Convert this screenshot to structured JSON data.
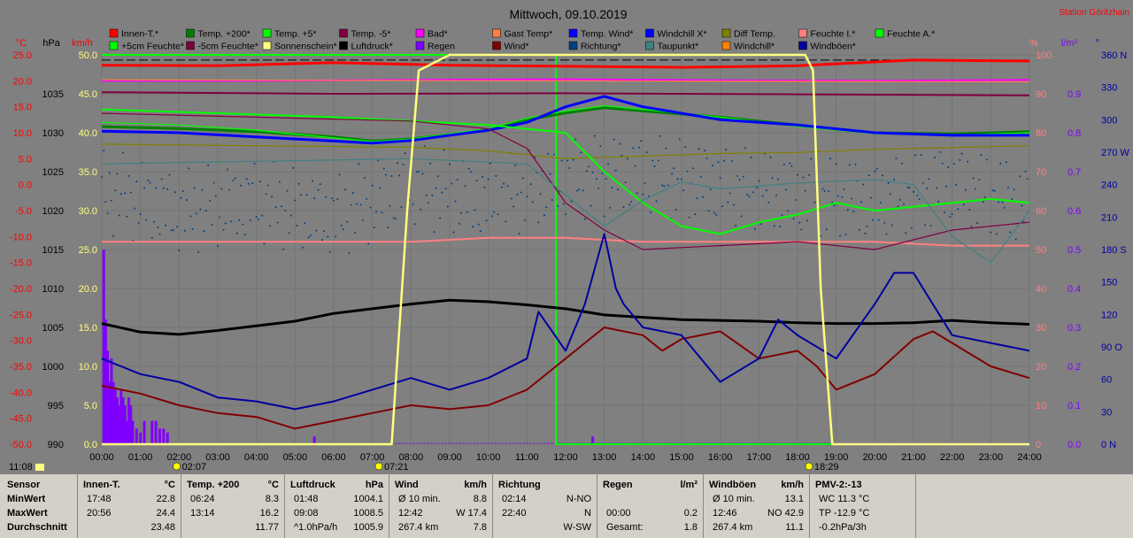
{
  "chart_data": {
    "type": "line",
    "title": "Mittwoch, 09.10.2019",
    "station": "Station Göritzhain",
    "x_ticks": [
      "00:00",
      "01:00",
      "02:00",
      "03:00",
      "04:00",
      "05:00",
      "06:00",
      "07:00",
      "08:00",
      "09:00",
      "10:00",
      "11:00",
      "12:00",
      "13:00",
      "14:00",
      "15:00",
      "16:00",
      "17:00",
      "18:00",
      "19:00",
      "20:00",
      "21:00",
      "22:00",
      "23:00",
      "24:00"
    ],
    "axes": {
      "temp_c": {
        "label": "°C",
        "ticks": [
          "25.0",
          "20.0",
          "15.0",
          "10.0",
          "5.0",
          "0.0",
          "-5.0",
          "-10.0",
          "-15.0",
          "-20.0",
          "-25.0",
          "-30.0",
          "-35.0",
          "-40.0",
          "-45.0",
          "-50.0"
        ],
        "range": [
          -50,
          25
        ],
        "color": "#ff0000"
      },
      "pressure_hpa": {
        "label": "hPa",
        "ticks": [
          "1035",
          "1030",
          "1025",
          "1020",
          "1015",
          "1010",
          "1005",
          "1000",
          "995",
          "990"
        ],
        "range": [
          990,
          1040
        ]
      },
      "wind_kmh": {
        "label": "km/h",
        "ticks": [
          "50.0",
          "45.0",
          "40.0",
          "35.0",
          "30.0",
          "25.0",
          "20.0",
          "15.0",
          "10.0",
          "5.0",
          "0.0"
        ],
        "range": [
          0,
          50
        ],
        "color": "#ffff80"
      },
      "humidity_pct": {
        "label": "%",
        "ticks": [
          "100",
          "90",
          "80",
          "70",
          "60",
          "50",
          "40",
          "30",
          "20",
          "10",
          "0"
        ],
        "range": [
          0,
          100
        ],
        "color": "#ff8080"
      },
      "rain_lm2": {
        "label": "l/m²",
        "ticks": [
          "0.9",
          "0.8",
          "0.7",
          "0.6",
          "0.5",
          "0.4",
          "0.3",
          "0.2",
          "0.1",
          "0.0"
        ],
        "range": [
          0,
          1
        ],
        "color": "#8000ff"
      },
      "direction": {
        "label": "°",
        "ticks": [
          "360 N",
          "330",
          "300",
          "270 W",
          "240",
          "210",
          "180 S",
          "150",
          "120",
          "90 O",
          "60",
          "30",
          "0 N"
        ],
        "range": [
          0,
          360
        ],
        "color": "#0000a0"
      }
    },
    "legend": [
      {
        "name": "Innen-T.*",
        "color": "#ff0000"
      },
      {
        "name": "Temp. +200*",
        "color": "#008000"
      },
      {
        "name": "Temp. +5*",
        "color": "#00ff00"
      },
      {
        "name": "Temp. -5*",
        "color": "#800040"
      },
      {
        "name": "Bad*",
        "color": "#ff00ff"
      },
      {
        "name": "Gast Temp*",
        "color": "#ff8040"
      },
      {
        "name": "Temp. Wind*",
        "color": "#0000ff"
      },
      {
        "name": "Windchill X*",
        "color": "#0000ff"
      },
      {
        "name": "Diff Temp.",
        "color": "#808000"
      },
      {
        "name": "Feuchte I.*",
        "color": "#ff8080"
      },
      {
        "name": "Feuchte A.*",
        "color": "#00ff00"
      },
      {
        "name": "+5cm Feuchte*",
        "color": "#00ff00"
      },
      {
        "name": "-5cm Feuchte*",
        "color": "#800040"
      },
      {
        "name": "Sonnenschein*",
        "color": "#ffff80"
      },
      {
        "name": "Luftdruck*",
        "color": "#000000"
      },
      {
        "name": "Regen",
        "color": "#8000ff"
      },
      {
        "name": "Wind*",
        "color": "#800000"
      },
      {
        "name": "Richtung*",
        "color": "#004080"
      },
      {
        "name": "Taupunkt*",
        "color": "#408080"
      },
      {
        "name": "Windchill*",
        "color": "#ff8000"
      },
      {
        "name": "Windböen*",
        "color": "#0000a0"
      }
    ],
    "series": [
      {
        "legend": "Innen-T.*",
        "color": "#ff0000",
        "axis": "temp_c",
        "x": [
          0,
          3,
          6,
          9,
          12,
          15,
          18,
          21,
          24
        ],
        "y": [
          23.0,
          22.9,
          23.5,
          23.0,
          22.8,
          22.6,
          22.9,
          24.0,
          23.8
        ]
      },
      {
        "legend": "Bad*",
        "color": "#ff00ff",
        "axis": "temp_c",
        "x": [
          0,
          4,
          8,
          12,
          16,
          20,
          24
        ],
        "y": [
          20.0,
          20.0,
          20.2,
          20.3,
          20.1,
          20.0,
          20.2
        ]
      },
      {
        "legend": "Gast Temp*",
        "color": "#ff8040",
        "axis": "temp_c",
        "x": [
          0,
          24
        ],
        "y": [
          20.2,
          19.8
        ]
      },
      {
        "legend": "Temp. -5*",
        "color": "#800040",
        "axis": "temp_c",
        "x": [
          0,
          6,
          12,
          18,
          24
        ],
        "y": [
          17.8,
          17.5,
          17.6,
          17.4,
          17.2
        ]
      },
      {
        "legend": "Temp. +200*",
        "color": "#008000",
        "axis": "temp_c",
        "x": [
          0,
          2,
          4,
          6,
          7,
          8,
          10,
          11,
          12,
          13,
          14,
          16,
          18,
          20,
          22,
          24
        ],
        "y": [
          11.2,
          10.8,
          10.2,
          9.2,
          8.4,
          8.8,
          10.5,
          12.5,
          13.8,
          14.8,
          14.2,
          13.0,
          11.5,
          10.0,
          9.8,
          10.2
        ]
      },
      {
        "legend": "Temp. +5*",
        "color": "#00ff00",
        "axis": "temp_c",
        "x": [
          0,
          2,
          4,
          6,
          7,
          8,
          10,
          11,
          12,
          13,
          14,
          16,
          18,
          20,
          22,
          24
        ],
        "y": [
          12.0,
          11.5,
          10.5,
          9.0,
          8.3,
          8.8,
          10.8,
          12.8,
          14.2,
          15.2,
          14.5,
          13.0,
          11.2,
          9.8,
          9.5,
          10.0
        ]
      },
      {
        "legend": "Windchill X*",
        "color": "#0000ff",
        "axis": "temp_c",
        "x": [
          0,
          2,
          4,
          6,
          7,
          8,
          9,
          10,
          11,
          12,
          12.5,
          13,
          14,
          16,
          18,
          20,
          22,
          24
        ],
        "y": [
          10.3,
          10.0,
          9.2,
          8.4,
          8.0,
          8.5,
          9.5,
          10.5,
          12.0,
          15.0,
          16.0,
          17.0,
          15.0,
          12.5,
          11.5,
          10.0,
          9.5,
          9.5
        ]
      },
      {
        "legend": "Diff Temp.",
        "color": "#808000",
        "axis": "temp_c",
        "x": [
          0,
          4,
          8,
          10,
          12,
          14,
          16,
          18,
          20,
          24
        ],
        "y": [
          7.8,
          7.5,
          7.2,
          6.5,
          5.0,
          5.5,
          6.0,
          6.2,
          6.8,
          7.5
        ]
      },
      {
        "legend": "Feuchte I.*",
        "color": "#ff8080",
        "axis": "humidity_pct",
        "x": [
          0,
          2,
          4,
          6,
          8,
          10,
          12,
          14,
          16,
          18,
          20,
          22,
          24
        ],
        "y": [
          52,
          52,
          52,
          52,
          52,
          53,
          53,
          52,
          52,
          52,
          52,
          51,
          51
        ]
      },
      {
        "legend": "Feuchte A.*",
        "color": "#00ff00",
        "axis": "humidity_pct",
        "x": [
          0,
          3,
          6,
          8,
          10,
          11,
          12,
          13,
          14,
          15,
          16,
          17,
          18,
          19,
          20,
          22,
          23,
          24
        ],
        "y": [
          86,
          85,
          84,
          83,
          82,
          81,
          80,
          70,
          62,
          56,
          54,
          57,
          59,
          62,
          60,
          62,
          63,
          62
        ]
      },
      {
        "legend": "-5cm Feuchte*",
        "color": "#800040",
        "axis": "humidity_pct",
        "x": [
          0,
          4,
          8,
          10,
          11,
          12,
          13,
          14,
          16,
          18,
          20,
          22,
          24
        ],
        "y": [
          85,
          84,
          83,
          81,
          76,
          62,
          55,
          50,
          51,
          52,
          50,
          55,
          57
        ]
      },
      {
        "legend": "Taupunkt*",
        "color": "#408080",
        "axis": "temp_c",
        "x": [
          0,
          4,
          8,
          11,
          12,
          13,
          14,
          15,
          16,
          18,
          20,
          21,
          22,
          23,
          24
        ],
        "y": [
          4,
          4.5,
          5,
          4,
          -2,
          -8,
          -3,
          0.5,
          -0.8,
          0.3,
          1.0,
          0,
          -10,
          -15,
          -5
        ]
      },
      {
        "legend": "Luftdruck*",
        "color": "#000000",
        "axis": "pressure_hpa",
        "x": [
          0,
          1,
          2,
          3,
          4,
          5,
          6,
          7,
          8,
          9,
          10,
          11,
          12,
          13,
          14,
          15,
          16,
          17,
          18,
          19,
          20,
          21,
          22,
          23,
          24
        ],
        "y": [
          1005.5,
          1004.4,
          1004.1,
          1004.6,
          1005.2,
          1005.8,
          1006.8,
          1007.4,
          1008.0,
          1008.5,
          1008.3,
          1007.9,
          1007.4,
          1006.6,
          1006.3,
          1006.0,
          1005.9,
          1005.8,
          1005.6,
          1005.5,
          1005.5,
          1005.6,
          1005.9,
          1005.6,
          1005.4
        ]
      },
      {
        "legend": "Wind*",
        "color": "#800000",
        "axis": "wind_kmh",
        "x": [
          0,
          1,
          2,
          3,
          4,
          5,
          6,
          7,
          8,
          9,
          10,
          11,
          12,
          12.5,
          13,
          14,
          14.5,
          15,
          16,
          17,
          18,
          18.5,
          19,
          20,
          21,
          21.5,
          22,
          23,
          24
        ],
        "y": [
          7.5,
          6.5,
          5.0,
          4.0,
          3.5,
          2.0,
          3.0,
          4.0,
          5.0,
          4.5,
          5.0,
          7.0,
          11.0,
          13.0,
          15.0,
          14.0,
          12.0,
          13.5,
          14.5,
          11.0,
          12.0,
          10.0,
          7.0,
          9.0,
          13.5,
          14.5,
          13.0,
          10.0,
          8.5
        ]
      },
      {
        "legend": "Windböen*",
        "color": "#0000a0",
        "axis": "wind_kmh",
        "x": [
          0,
          1,
          2,
          3,
          4,
          5,
          6,
          7,
          8,
          9,
          10,
          11,
          11.3,
          12,
          12.5,
          13,
          13.3,
          13.5,
          14,
          15,
          16,
          17,
          17.5,
          18,
          19,
          20,
          20.5,
          21,
          21.5,
          22,
          23,
          24
        ],
        "y": [
          11.0,
          9.0,
          8.0,
          6.0,
          5.5,
          4.5,
          5.5,
          7.0,
          8.5,
          7.0,
          8.5,
          11.0,
          17.0,
          12.0,
          18.0,
          27.0,
          20.0,
          18.0,
          15.0,
          14.0,
          8.0,
          11.0,
          16.0,
          14.0,
          11.0,
          18.0,
          22.0,
          22.0,
          18.0,
          14.0,
          13.0,
          12.0
        ]
      },
      {
        "legend": "Sonnenschein*",
        "color": "#ffff80",
        "axis": "wind_kmh",
        "x": [
          0,
          7.5,
          7.9,
          8.2,
          9,
          18.2,
          18.4,
          18.6,
          18.9,
          24
        ],
        "y": [
          0,
          0,
          30,
          48,
          50,
          50,
          48,
          20,
          0,
          0
        ]
      },
      {
        "legend": "Richtung*",
        "color": "#004080",
        "axis": "direction",
        "x": [
          0,
          2,
          4,
          6,
          8,
          10,
          12,
          14,
          16,
          18,
          20,
          22,
          24
        ],
        "y": [
          235,
          215,
          225,
          210,
          240,
          225,
          245,
          250,
          240,
          230,
          225,
          240,
          220
        ]
      }
    ],
    "extra_line": {
      "x": [
        0,
        11.75,
        11.75,
        24
      ],
      "y": [
        50,
        50,
        0,
        0
      ],
      "color": "#00ff00",
      "axis": "wind_kmh"
    },
    "rain_bars": {
      "x": [
        0.05,
        0.1,
        0.15,
        0.2,
        0.25,
        0.3,
        0.35,
        0.4,
        0.45,
        0.5,
        0.55,
        0.6,
        0.65,
        0.7,
        0.75,
        0.8,
        0.9,
        1.0,
        1.1,
        1.3,
        1.4,
        1.5,
        1.6,
        1.7,
        5.5,
        12.7
      ],
      "y": [
        0.5,
        0.32,
        0.24,
        0.16,
        0.22,
        0.16,
        0.14,
        0.12,
        0.1,
        0.14,
        0.12,
        0.1,
        0.06,
        0.12,
        0.1,
        0.06,
        0.04,
        0.03,
        0.06,
        0.06,
        0.06,
        0.04,
        0.04,
        0.03,
        0.02,
        0.02
      ],
      "color": "#8000ff"
    },
    "reference_line": {
      "axis": "temp_c",
      "y": 24.0
    },
    "sunrise_marks": [
      {
        "label": "02:07",
        "x": 2.12
      },
      {
        "label": "07:21",
        "x": 7.35
      },
      {
        "label": "18:29",
        "x": 18.48
      }
    ],
    "corner_label": "11:08"
  },
  "table": {
    "row_labels": [
      "Sensor",
      "MinWert",
      "MaxWert",
      "Durchschnitt"
    ],
    "columns": [
      {
        "title": "Innen-T.",
        "unit": "°C",
        "rows": [
          [
            "17:48",
            "22.8"
          ],
          [
            "20:56",
            "24.4"
          ],
          [
            "",
            "23.48"
          ]
        ]
      },
      {
        "title": "Temp. +200",
        "unit": "°C",
        "rows": [
          [
            "06:24",
            "8.3"
          ],
          [
            "13:14",
            "16.2"
          ],
          [
            "",
            "11.77"
          ]
        ]
      },
      {
        "title": "Luftdruck",
        "unit": "hPa",
        "rows": [
          [
            "01:48",
            "1004.1"
          ],
          [
            "09:08",
            "1008.5"
          ],
          [
            "^1.0hPa/h",
            "1005.9"
          ]
        ]
      },
      {
        "title": "Wind",
        "unit": "km/h",
        "rows": [
          [
            "Ø 10 min.",
            "8.8"
          ],
          [
            "12:42",
            "W 17.4"
          ],
          [
            "267.4 km",
            "7.8"
          ]
        ]
      },
      {
        "title": "Richtung",
        "unit": "",
        "rows": [
          [
            "02:14",
            "N-NO"
          ],
          [
            "22:40",
            "N"
          ],
          [
            "",
            "W-SW"
          ]
        ]
      },
      {
        "title": "Regen",
        "unit": "l/m²",
        "rows": [
          [
            "",
            ""
          ],
          [
            "00:00",
            "0.2"
          ],
          [
            "Gesamt:",
            "1.8"
          ]
        ]
      },
      {
        "title": "Windböen",
        "unit": "km/h",
        "rows": [
          [
            "Ø 10 min.",
            "13.1"
          ],
          [
            "12:46",
            "NO 42.9"
          ],
          [
            "267.4 km",
            "11.1"
          ]
        ]
      },
      {
        "title": "PMV-2:-13",
        "unit": "",
        "rows": [
          [
            "WC 11.3 °C",
            ""
          ],
          [
            "TP -12.9 °C",
            ""
          ],
          [
            "-0.2hPa/3h",
            ""
          ]
        ]
      }
    ]
  }
}
